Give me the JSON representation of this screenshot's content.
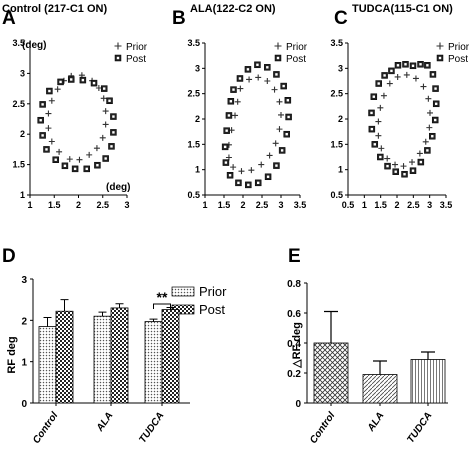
{
  "figure": {
    "panel_letters": [
      "A",
      "B",
      "C",
      "D",
      "E"
    ]
  },
  "chart_data": [
    {
      "type": "scatter",
      "panel": "A",
      "title": "Control (217-C1 ON)",
      "xlabel": "(deg)",
      "ylabel": "(deg)",
      "xlim": [
        1,
        3
      ],
      "ylim": [
        1,
        3.5
      ],
      "xticks": [
        "1",
        "1.5",
        "2",
        "2.5",
        "3"
      ],
      "yticks": [
        "1",
        "1.5",
        "2",
        "2.5",
        "3",
        "3.5"
      ],
      "legend": {
        "position": "top-right",
        "entries": [
          "Prior",
          "Post"
        ]
      },
      "series": [
        {
          "name": "Prior",
          "marker": "plus",
          "points": [
            [
              1.85,
              2.96
            ],
            [
              2.07,
              2.97
            ],
            [
              2.28,
              2.88
            ],
            [
              2.42,
              2.76
            ],
            [
              2.52,
              2.59
            ],
            [
              2.56,
              2.38
            ],
            [
              2.56,
              2.16
            ],
            [
              2.5,
              1.94
            ],
            [
              2.38,
              1.77
            ],
            [
              2.22,
              1.66
            ],
            [
              2.02,
              1.58
            ],
            [
              1.82,
              1.59
            ],
            [
              1.6,
              1.71
            ],
            [
              1.45,
              1.88
            ],
            [
              1.38,
              2.1
            ],
            [
              1.38,
              2.34
            ],
            [
              1.45,
              2.55
            ],
            [
              1.57,
              2.74
            ],
            [
              1.7,
              2.88
            ]
          ]
        },
        {
          "name": "Post",
          "marker": "square",
          "points": [
            [
              1.63,
              2.86
            ],
            [
              1.85,
              2.9
            ],
            [
              2.09,
              2.89
            ],
            [
              2.32,
              2.84
            ],
            [
              2.53,
              2.75
            ],
            [
              2.64,
              2.55
            ],
            [
              2.72,
              2.29
            ],
            [
              2.72,
              2.03
            ],
            [
              2.68,
              1.8
            ],
            [
              2.56,
              1.6
            ],
            [
              2.39,
              1.49
            ],
            [
              2.17,
              1.43
            ],
            [
              1.93,
              1.43
            ],
            [
              1.72,
              1.48
            ],
            [
              1.53,
              1.58
            ],
            [
              1.34,
              1.75
            ],
            [
              1.26,
              1.98
            ],
            [
              1.22,
              2.23
            ],
            [
              1.26,
              2.49
            ],
            [
              1.4,
              2.71
            ]
          ]
        }
      ]
    },
    {
      "type": "scatter",
      "panel": "B",
      "title": "ALA(122-C2 ON)",
      "xlabel": "",
      "ylabel": "",
      "xlim": [
        1,
        3.5
      ],
      "ylim": [
        0.5,
        3.5
      ],
      "xticks": [
        "1",
        "1.5",
        "2",
        "2.5",
        "3",
        "3.5"
      ],
      "yticks": [
        "0.5",
        "1",
        "1.5",
        "2",
        "2.5",
        "3",
        "3.5"
      ],
      "legend": {
        "position": "top-right",
        "entries": [
          "Prior",
          "Post"
        ]
      },
      "series": [
        {
          "name": "Prior",
          "marker": "plus",
          "points": [
            [
              1.93,
              2.6
            ],
            [
              2.16,
              2.78
            ],
            [
              2.4,
              2.82
            ],
            [
              2.64,
              2.75
            ],
            [
              2.83,
              2.58
            ],
            [
              2.96,
              2.34
            ],
            [
              3.0,
              2.08
            ],
            [
              2.96,
              1.8
            ],
            [
              2.86,
              1.52
            ],
            [
              2.7,
              1.28
            ],
            [
              2.48,
              1.1
            ],
            [
              2.22,
              0.99
            ],
            [
              1.96,
              0.97
            ],
            [
              1.74,
              1.05
            ],
            [
              1.63,
              1.24
            ],
            [
              1.63,
              1.49
            ],
            [
              1.7,
              1.78
            ],
            [
              1.79,
              2.07
            ],
            [
              1.86,
              2.34
            ]
          ]
        },
        {
          "name": "Post",
          "marker": "square",
          "points": [
            [
              1.75,
              2.58
            ],
            [
              1.92,
              2.8
            ],
            [
              2.13,
              2.98
            ],
            [
              2.38,
              3.07
            ],
            [
              2.64,
              3.02
            ],
            [
              2.88,
              2.88
            ],
            [
              3.07,
              2.65
            ],
            [
              3.18,
              2.37
            ],
            [
              3.2,
              2.04
            ],
            [
              3.15,
              1.7
            ],
            [
              3.03,
              1.38
            ],
            [
              2.88,
              1.08
            ],
            [
              2.66,
              0.86
            ],
            [
              2.4,
              0.74
            ],
            [
              2.14,
              0.7
            ],
            [
              1.88,
              0.74
            ],
            [
              1.66,
              0.89
            ],
            [
              1.55,
              1.14
            ],
            [
              1.53,
              1.45
            ],
            [
              1.57,
              1.77
            ],
            [
              1.63,
              2.07
            ],
            [
              1.68,
              2.35
            ]
          ]
        }
      ]
    },
    {
      "type": "scatter",
      "panel": "C",
      "title": "TUDCA(115-C1 ON)",
      "xlabel": "",
      "ylabel": "",
      "xlim": [
        0.5,
        3.5
      ],
      "ylim": [
        0.5,
        3.5
      ],
      "xticks": [
        "0.5",
        "1",
        "1.5",
        "2",
        "2.5",
        "3",
        "3.5"
      ],
      "yticks": [
        "0.5",
        "1",
        "1.5",
        "2",
        "2.5",
        "3",
        "3.5"
      ],
      "legend": {
        "position": "top-right",
        "entries": [
          "Prior",
          "Post"
        ]
      },
      "series": [
        {
          "name": "Prior",
          "marker": "plus",
          "points": [
            [
              1.78,
              2.7
            ],
            [
              2.02,
              2.83
            ],
            [
              2.3,
              2.87
            ],
            [
              2.58,
              2.8
            ],
            [
              2.81,
              2.64
            ],
            [
              2.96,
              2.4
            ],
            [
              3.01,
              2.12
            ],
            [
              2.99,
              1.83
            ],
            [
              2.88,
              1.55
            ],
            [
              2.7,
              1.32
            ],
            [
              2.46,
              1.15
            ],
            [
              2.2,
              1.07
            ],
            [
              1.94,
              1.1
            ],
            [
              1.7,
              1.22
            ],
            [
              1.52,
              1.42
            ],
            [
              1.43,
              1.67
            ],
            [
              1.43,
              1.95
            ],
            [
              1.49,
              2.22
            ],
            [
              1.6,
              2.46
            ]
          ]
        },
        {
          "name": "Post",
          "marker": "square",
          "points": [
            [
              1.83,
              2.95
            ],
            [
              2.03,
              3.06
            ],
            [
              2.26,
              3.08
            ],
            [
              2.49,
              3.05
            ],
            [
              2.72,
              3.08
            ],
            [
              2.93,
              3.06
            ],
            [
              3.1,
              2.88
            ],
            [
              3.18,
              2.6
            ],
            [
              3.2,
              2.3
            ],
            [
              3.17,
              1.98
            ],
            [
              3.08,
              1.66
            ],
            [
              2.93,
              1.38
            ],
            [
              2.73,
              1.15
            ],
            [
              2.49,
              0.98
            ],
            [
              2.23,
              0.91
            ],
            [
              1.96,
              0.96
            ],
            [
              1.71,
              1.07
            ],
            [
              1.49,
              1.25
            ],
            [
              1.32,
              1.5
            ],
            [
              1.23,
              1.8
            ],
            [
              1.22,
              2.12
            ],
            [
              1.29,
              2.44
            ],
            [
              1.44,
              2.7
            ],
            [
              1.62,
              2.86
            ]
          ]
        }
      ]
    },
    {
      "type": "bar",
      "panel": "D",
      "ylabel": "RF deg",
      "ylim": [
        0,
        3
      ],
      "yticks": [
        "0",
        "1",
        "2",
        "3"
      ],
      "categories": [
        "Control",
        "ALA",
        "TUDCA"
      ],
      "legend": {
        "position": "top-right",
        "entries": [
          "Prior",
          "Post"
        ]
      },
      "series": [
        {
          "name": "Prior",
          "values": [
            1.85,
            2.1,
            1.97
          ],
          "errors": [
            0.22,
            0.1,
            0.06
          ]
        },
        {
          "name": "Post",
          "values": [
            2.22,
            2.3,
            2.26
          ],
          "errors": [
            0.28,
            0.1,
            0.05
          ]
        }
      ],
      "annotations": [
        {
          "category": "TUDCA",
          "text": "**"
        }
      ]
    },
    {
      "type": "bar",
      "panel": "E",
      "ylabel": "△RF deg",
      "ylim": [
        0,
        0.8
      ],
      "yticks": [
        "0",
        "0.2",
        "0.4",
        "0.6",
        "0.8"
      ],
      "categories": [
        "Control",
        "ALA",
        "TUDCA"
      ],
      "series": [
        {
          "values": [
            0.4,
            0.19,
            0.29
          ],
          "errors": [
            0.21,
            0.09,
            0.05
          ]
        }
      ]
    }
  ]
}
